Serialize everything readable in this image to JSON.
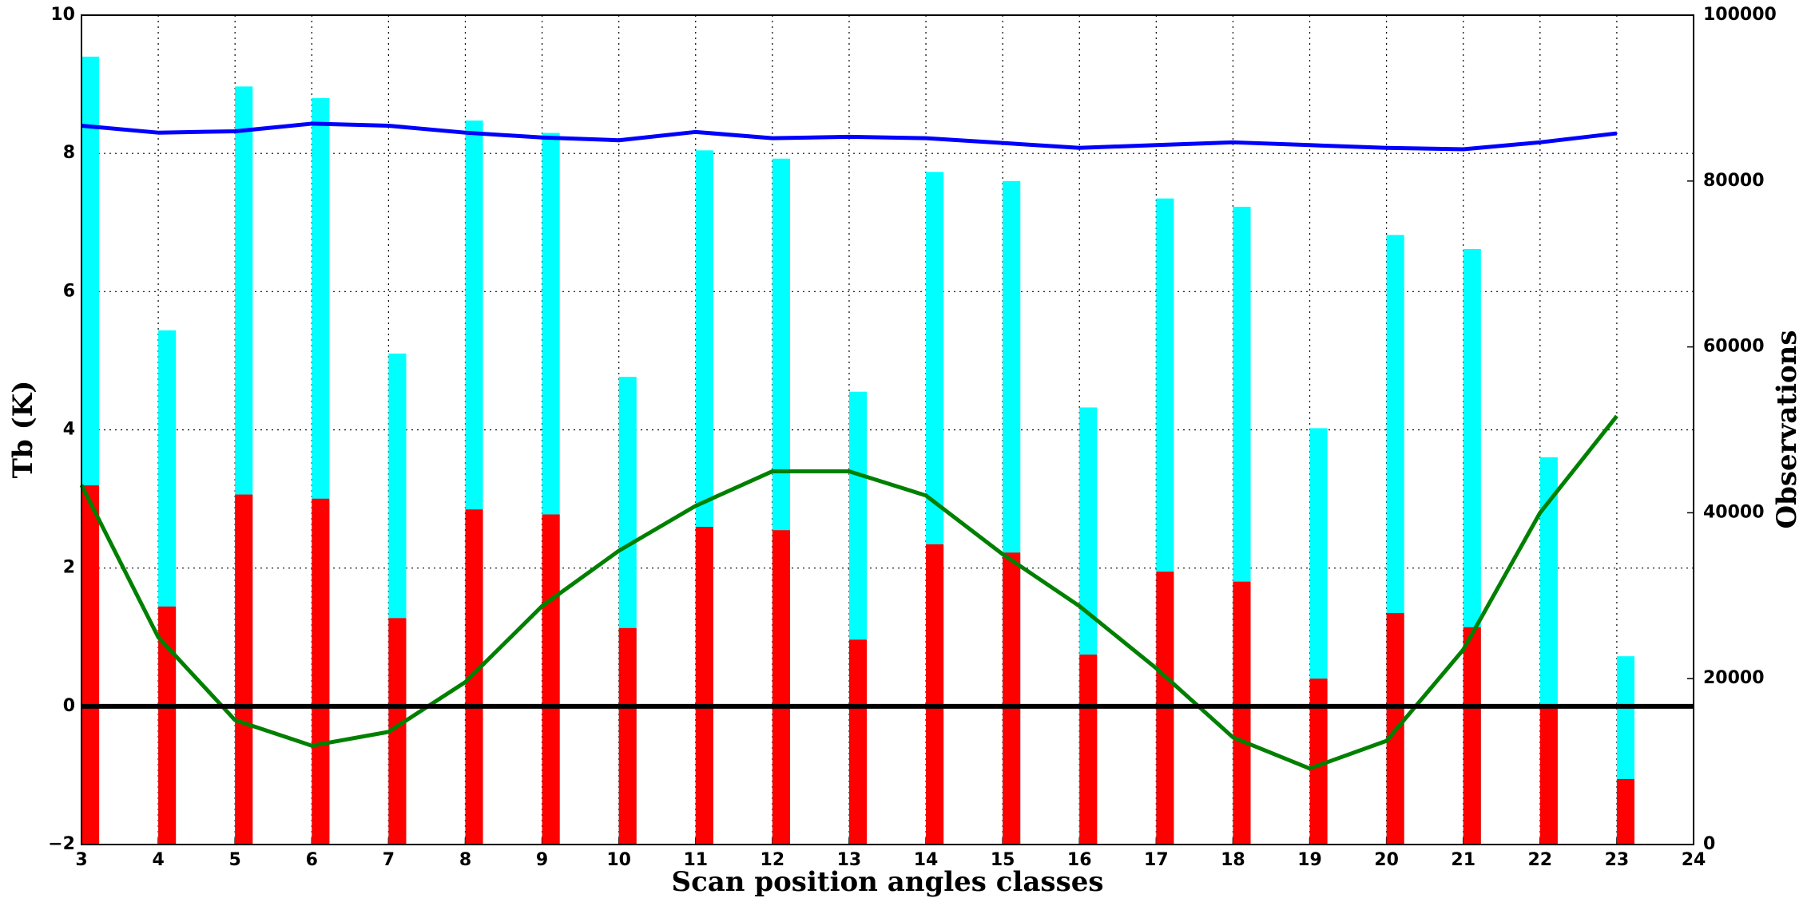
{
  "chart_data": {
    "type": "bar",
    "xlabel": "Scan position angles classes",
    "ylabel": "Tb (K)",
    "y2label": "Observations",
    "xlim": [
      3,
      24
    ],
    "xticks": [
      3,
      4,
      5,
      6,
      7,
      8,
      9,
      10,
      11,
      12,
      13,
      14,
      15,
      16,
      17,
      18,
      19,
      20,
      21,
      22,
      23,
      24
    ],
    "ylim": [
      -2,
      10
    ],
    "yticks": [
      {
        "value": -2,
        "label": "−2"
      },
      0,
      2,
      4,
      6,
      8,
      10
    ],
    "y2lim": [
      0,
      100000
    ],
    "y2ticks": [
      0,
      20000,
      40000,
      60000,
      80000,
      100000
    ],
    "grid": true,
    "hline": 0,
    "x": [
      3,
      4,
      5,
      6,
      7,
      8,
      9,
      10,
      11,
      12,
      13,
      14,
      15,
      16,
      17,
      18,
      19,
      20,
      21,
      22,
      23
    ],
    "series": [
      {
        "type": "bar",
        "axis": "y2",
        "color": "#00ffff",
        "values": [
          95000,
          62000,
          91400,
          90000,
          59200,
          87300,
          85800,
          56400,
          83700,
          82700,
          54600,
          81100,
          80000,
          52700,
          77900,
          76900,
          50200,
          73500,
          71800,
          46700,
          22700
        ]
      },
      {
        "type": "bar",
        "axis": "y2",
        "color": "#ff0000",
        "values": [
          43300,
          28700,
          42200,
          41700,
          27300,
          40400,
          39800,
          26100,
          38300,
          37900,
          24700,
          36200,
          35200,
          22900,
          32900,
          31700,
          20000,
          27900,
          26200,
          16900,
          7900
        ]
      },
      {
        "type": "line",
        "color": "#0000ff",
        "values": [
          8.4,
          8.3,
          8.32,
          8.43,
          8.4,
          8.3,
          8.23,
          8.19,
          8.31,
          8.22,
          8.24,
          8.22,
          8.15,
          8.08,
          8.12,
          8.16,
          8.12,
          8.08,
          8.06,
          8.16,
          8.29
        ]
      },
      {
        "type": "line",
        "color": "#008000",
        "values": [
          3.2,
          1.0,
          -0.2,
          -0.57,
          -0.37,
          0.35,
          1.45,
          2.25,
          2.9,
          3.4,
          3.4,
          3.05,
          2.2,
          1.45,
          0.55,
          -0.45,
          -0.9,
          -0.5,
          0.82,
          2.8,
          4.2
        ]
      }
    ]
  }
}
